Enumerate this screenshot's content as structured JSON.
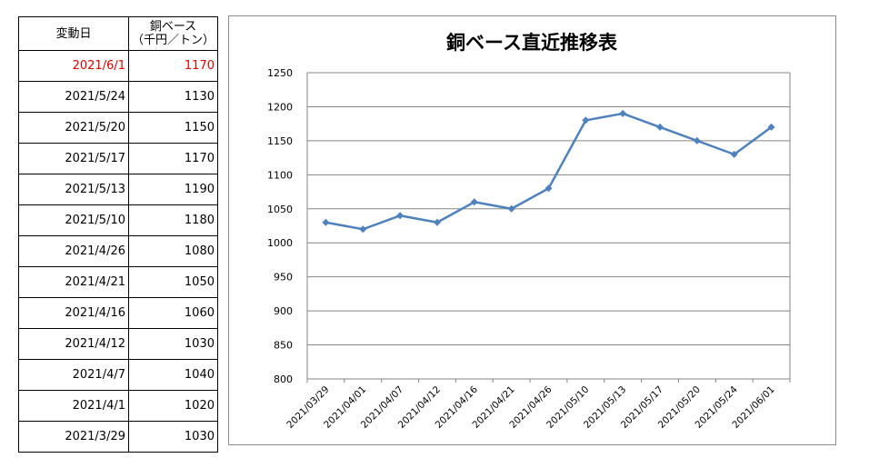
{
  "table": {
    "header": {
      "date": "変動日",
      "price_line1": "銅ベース",
      "price_line2": "（千円／トン）"
    },
    "highlight_color": "#e00000",
    "rows": [
      {
        "date": "2021/6/1",
        "price": "1170",
        "highlight": true
      },
      {
        "date": "2021/5/24",
        "price": "1130",
        "highlight": false
      },
      {
        "date": "2021/5/20",
        "price": "1150",
        "highlight": false
      },
      {
        "date": "2021/5/17",
        "price": "1170",
        "highlight": false
      },
      {
        "date": "2021/5/13",
        "price": "1190",
        "highlight": false
      },
      {
        "date": "2021/5/10",
        "price": "1180",
        "highlight": false
      },
      {
        "date": "2021/4/26",
        "price": "1080",
        "highlight": false
      },
      {
        "date": "2021/4/21",
        "price": "1050",
        "highlight": false
      },
      {
        "date": "2021/4/16",
        "price": "1060",
        "highlight": false
      },
      {
        "date": "2021/4/12",
        "price": "1030",
        "highlight": false
      },
      {
        "date": "2021/4/7",
        "price": "1040",
        "highlight": false
      },
      {
        "date": "2021/4/1",
        "price": "1020",
        "highlight": false
      },
      {
        "date": "2021/3/29",
        "price": "1030",
        "highlight": false
      }
    ]
  },
  "chart_data": {
    "type": "line",
    "title": "銅ベース直近推移表",
    "x": [
      "2021/03/29",
      "2021/04/01",
      "2021/04/07",
      "2021/04/12",
      "2021/04/16",
      "2021/04/21",
      "2021/04/26",
      "2021/05/10",
      "2021/05/13",
      "2021/05/17",
      "2021/05/20",
      "2021/05/24",
      "2021/06/01"
    ],
    "series": [
      {
        "values": [
          1030,
          1020,
          1040,
          1030,
          1060,
          1050,
          1080,
          1180,
          1190,
          1170,
          1150,
          1130,
          1170
        ],
        "color": "#4f81bd",
        "marker": "diamond"
      }
    ],
    "xlabel": "",
    "ylabel": "",
    "ylim": [
      800,
      1250
    ],
    "yticks": [
      800,
      850,
      900,
      950,
      1000,
      1050,
      1100,
      1150,
      1200,
      1250
    ],
    "grid": true,
    "legend": false
  }
}
